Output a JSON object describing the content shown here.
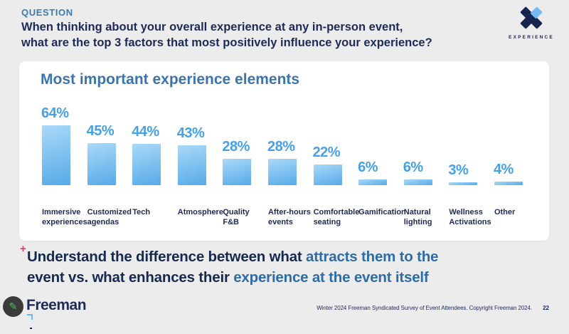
{
  "header": {
    "eyebrow": "QUESTION",
    "question_line1": "When thinking about your overall experience at any in-person event,",
    "question_line2": "what are the top 3 factors that most positively influence your experience?",
    "logo": {
      "label": "EXPERIENCE",
      "x_dark": "#16254e",
      "x_accent": "#74baf3"
    }
  },
  "chart_data": {
    "type": "bar",
    "title": "Most important experience elements",
    "categories": [
      [
        "Immersive",
        "experiences"
      ],
      [
        "Customized",
        "agendas"
      ],
      [
        "Tech"
      ],
      [
        "Atmosphere"
      ],
      [
        "Quality",
        "F&B"
      ],
      [
        "After-hours",
        "events"
      ],
      [
        "Comfortable",
        "seating"
      ],
      [
        "Gamification"
      ],
      [
        "Natural",
        "lighting"
      ],
      [
        "Wellness",
        "Activations"
      ],
      [
        "Other"
      ]
    ],
    "values": [
      64,
      45,
      44,
      43,
      28,
      28,
      22,
      6,
      6,
      3,
      4
    ],
    "value_suffix": "%",
    "value_label_color": "#46a0e6",
    "bar_gradient_top": "#a9d9f8",
    "bar_gradient_bottom": "#57aae8",
    "ylim": [
      0,
      70
    ],
    "grid": false,
    "legend": false,
    "xlabel": "",
    "ylabel": ""
  },
  "insight": {
    "marker": "+",
    "lines": [
      {
        "segments": [
          {
            "text": "Understand the difference between what ",
            "style": "dark"
          },
          {
            "text": "attracts them to the",
            "style": "accent"
          }
        ]
      },
      {
        "segments": [
          {
            "text": "event vs. what enhances their ",
            "style": "dark"
          },
          {
            "text": "experience at the event itself",
            "style": "accent"
          }
        ]
      }
    ]
  },
  "footer": {
    "brand": "Freeman",
    "pencil_icon": "✎",
    "note": "Winter 2024 Freeman Syndicated Survey of Event Attendees. Copyright Freeman 2024.",
    "page_number": "22"
  }
}
